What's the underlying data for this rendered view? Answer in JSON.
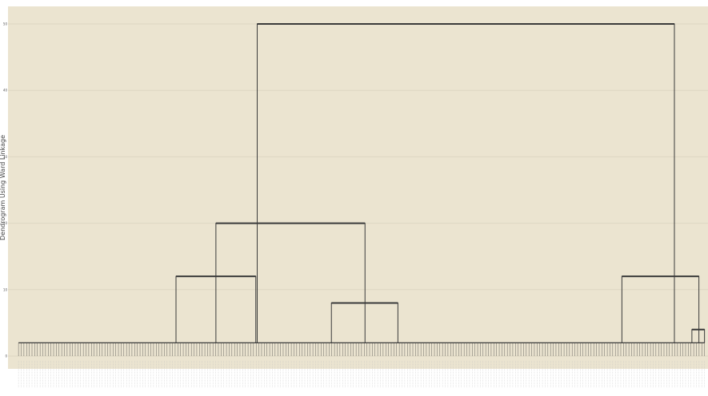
{
  "chart_data": {
    "type": "dendrogram",
    "title": "",
    "xlabel": "",
    "ylabel": "Dendrogram Using Ward Linkage",
    "ylim": [
      0,
      50
    ],
    "yticks": [
      0,
      10,
      20,
      30,
      40,
      50
    ],
    "grid": true,
    "leaf_count": 255,
    "background_color": "#ebe4d0",
    "grid_color": "#ddd6c2",
    "line_color": "#3a3a3a",
    "leaf_labels": [],
    "merges": [
      {
        "name": "root",
        "height": 50,
        "left_x": 0.356,
        "right_x": 0.952
      },
      {
        "name": "left-cluster",
        "height": 20,
        "left_x": 0.297,
        "right_x": 0.51
      },
      {
        "name": "cluster-a",
        "height": 12,
        "left_x": 0.24,
        "right_x": 0.354
      },
      {
        "name": "cluster-b",
        "height": 8,
        "left_x": 0.462,
        "right_x": 0.557
      },
      {
        "name": "right-cluster",
        "height": 12,
        "left_x": 0.877,
        "right_x": 0.987
      },
      {
        "name": "tail-merge",
        "height": 4,
        "left_x": 0.977,
        "right_x": 0.995
      }
    ],
    "base_height": 2
  }
}
